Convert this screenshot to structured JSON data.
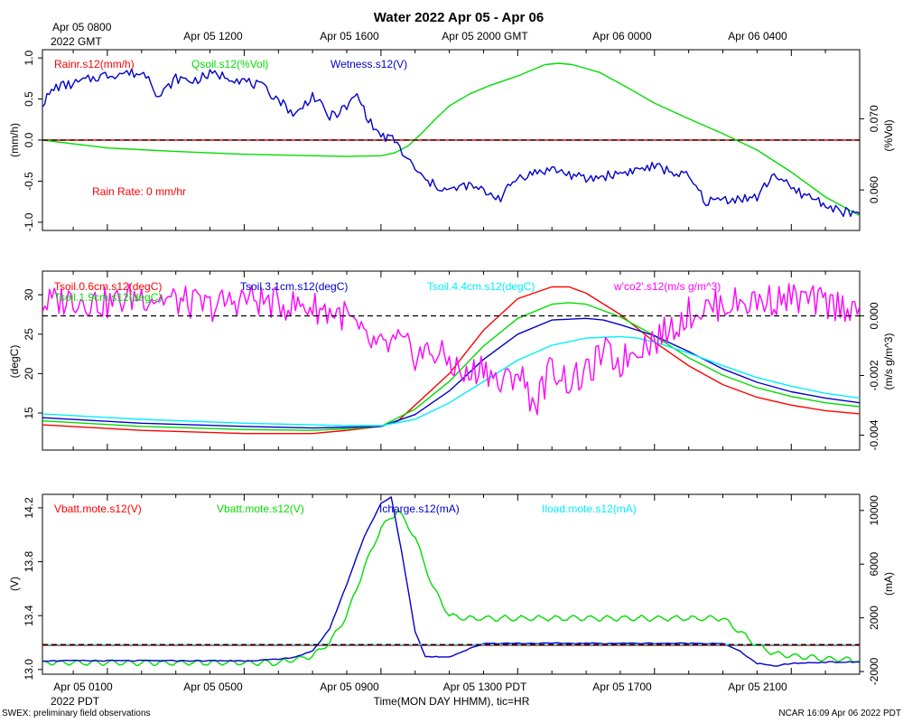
{
  "title": "Water 2022 Apr 05 - Apr 06",
  "top_axis": {
    "first_label_line1": "Apr 05 0800",
    "first_label_line2": "2022 GMT",
    "labels": [
      "Apr 05 1200",
      "Apr 05 1600",
      "Apr 05 2000 GMT",
      "Apr 06 0000",
      "Apr 06 0400"
    ]
  },
  "bottom_axis": {
    "labels": [
      "Apr 05 0100",
      "Apr 05 0500",
      "Apr 05 0900",
      "Apr 05 1300 PDT",
      "Apr 05 1700",
      "Apr 05 2100"
    ],
    "year_label": "2022 PDT",
    "xlabel": "Time(MON DAY HHMM), tic=HR"
  },
  "footer": {
    "left": "SWEX: preliminary field observations",
    "right": "NCAR 16:09 Apr 06 2022 PDT"
  },
  "colors": {
    "red": "#ff0000",
    "green": "#00dd00",
    "blue": "#0000cc",
    "cyan": "#00eeff",
    "magenta": "#ff00ff"
  },
  "chart_data": [
    {
      "type": "line",
      "panel": "water",
      "x_unit": "hours since Apr 05 0000 PDT",
      "xlim": [
        23.1,
        47.0
      ],
      "left_axis": {
        "label": "(mm/h)",
        "ylim": [
          -1.1,
          1.1
        ],
        "ticks": [
          "1.0",
          "0.5",
          "0.0",
          "-0.5",
          "-1.0"
        ],
        "tick_values": [
          1.0,
          0.5,
          0.0,
          -0.5,
          -1.0
        ]
      },
      "right_axis": {
        "label": "(%Vol)",
        "ylim": [
          0.0543,
          0.0797
        ],
        "ticks": [
          "0.070",
          "0.060"
        ],
        "tick_values": [
          0.07,
          0.06
        ]
      },
      "legend": [
        "Rainr.s12(mm/h)",
        "Qsoil.s12(%Vol)",
        "Wetness.s12(V)"
      ],
      "annotation": "Rain Rate: 0 mm/hr",
      "reference_line": 0.0,
      "series": [
        {
          "name": "Rainr.s12(mm/h)",
          "axis": "left",
          "color": "red",
          "x": [
            23.1,
            47.0
          ],
          "y": [
            0,
            0
          ]
        },
        {
          "name": "Qsoil.s12(%Vol)",
          "axis": "right",
          "color": "green",
          "x": [
            23.1,
            25,
            27,
            29,
            31,
            32,
            33,
            33.4,
            33.8,
            34.2,
            34.6,
            35.0,
            35.6,
            36.2,
            37.0,
            37.8,
            38.2,
            38.6,
            39.4,
            40.2,
            41.0,
            42.0,
            43.0,
            44.0,
            45.0,
            46.0,
            47.0
          ],
          "y": [
            0.067,
            0.0659,
            0.0654,
            0.065,
            0.0648,
            0.0647,
            0.0648,
            0.0652,
            0.0662,
            0.068,
            0.07,
            0.0718,
            0.0735,
            0.0747,
            0.076,
            0.0776,
            0.0778,
            0.0776,
            0.0765,
            0.0744,
            0.0722,
            0.07,
            0.0679,
            0.0656,
            0.0625,
            0.059,
            0.0564
          ]
        },
        {
          "name": "Wetness.s12(V)",
          "axis": "left",
          "color": "blue",
          "x": [
            23.1,
            23.5,
            24,
            24.8,
            25.5,
            26.2,
            26.5,
            27.0,
            27.5,
            28.0,
            28.5,
            29.0,
            29.5,
            30.0,
            30.5,
            31.0,
            31.5,
            32.0,
            32.3,
            32.7,
            33.0,
            33.4,
            33.7,
            34.0,
            34.3,
            35.0,
            35.5,
            36.0,
            36.5,
            37.0,
            38.0,
            39.0,
            40.0,
            41.0,
            42.0,
            42.5,
            43.0,
            44.0,
            44.5,
            45.0,
            45.3,
            45.6,
            46.0,
            46.3,
            46.6,
            47.0
          ],
          "y": [
            0.45,
            0.65,
            0.68,
            0.78,
            0.82,
            0.8,
            0.52,
            0.75,
            0.72,
            0.8,
            0.78,
            0.72,
            0.65,
            0.5,
            0.3,
            0.55,
            0.28,
            0.4,
            0.55,
            0.2,
            0.05,
            0.0,
            -0.2,
            -0.35,
            -0.5,
            -0.62,
            -0.55,
            -0.62,
            -0.7,
            -0.45,
            -0.35,
            -0.48,
            -0.4,
            -0.32,
            -0.45,
            -0.75,
            -0.72,
            -0.7,
            -0.4,
            -0.6,
            -0.65,
            -0.7,
            -0.78,
            -0.85,
            -0.88,
            -0.9
          ]
        }
      ]
    },
    {
      "type": "line",
      "panel": "soil_temperature",
      "x_unit": "hours since Apr 05 0000 PDT",
      "xlim": [
        23.1,
        47.0
      ],
      "left_axis": {
        "label": "(degC)",
        "ylim": [
          10.3,
          33.0
        ],
        "ticks": [
          "30",
          "25",
          "20",
          "15"
        ],
        "tick_values": [
          30,
          25,
          20,
          15
        ]
      },
      "right_axis": {
        "label": "(m/s g/m^3)",
        "ylim": [
          -0.0045,
          0.0015
        ],
        "ticks": [
          "0.000",
          "-0.002",
          "-0.004"
        ],
        "tick_values": [
          0.0,
          -0.002,
          -0.004
        ]
      },
      "legend": [
        "Tsoil.0.6cm.s12(degC)",
        "Tsoil.1.9cm.s12(degC)",
        "Tsoil.3.1cm.s12(degC)",
        "Tsoil.4.4cm.s12(degC)",
        "w'co2'.s12(m/s g/m^3)"
      ],
      "reference_line": 0.0,
      "series": [
        {
          "name": "Tsoil.0.6cm.s12(degC)",
          "axis": "left",
          "color": "red",
          "x": [
            23.1,
            26,
            29,
            31,
            32,
            33,
            33.5,
            34,
            35,
            36,
            37,
            38,
            38.5,
            39,
            40,
            41,
            42,
            43,
            44,
            45,
            46,
            47.0
          ],
          "y": [
            13.5,
            12.8,
            12.4,
            12.4,
            12.8,
            13.3,
            14.0,
            16.0,
            20.0,
            25.5,
            29.5,
            31.0,
            31.0,
            30.2,
            27.5,
            24.0,
            21.0,
            18.6,
            17.0,
            16.0,
            15.3,
            14.9
          ]
        },
        {
          "name": "Tsoil.1.9cm.s12(degC)",
          "axis": "left",
          "color": "green",
          "x": [
            23.1,
            26,
            29,
            31,
            32,
            33,
            34,
            35,
            36,
            37,
            38,
            38.5,
            39,
            40,
            41,
            42,
            43,
            44,
            45,
            46,
            47.0
          ],
          "y": [
            14.0,
            13.3,
            12.9,
            12.8,
            13.0,
            13.3,
            15.5,
            19.0,
            23.5,
            27.0,
            28.8,
            29.0,
            28.8,
            27.2,
            24.8,
            22.0,
            19.8,
            18.2,
            17.1,
            16.3,
            15.8
          ]
        },
        {
          "name": "Tsoil.3.1cm.s12(degC)",
          "axis": "left",
          "color": "blue",
          "x": [
            23.1,
            26,
            29,
            31,
            32,
            33,
            34,
            35,
            36,
            37,
            38,
            39,
            39.5,
            40,
            41,
            42,
            43,
            44,
            45,
            46,
            47.0
          ],
          "y": [
            14.4,
            13.7,
            13.3,
            13.1,
            13.2,
            13.3,
            14.8,
            17.8,
            21.8,
            25.0,
            26.8,
            27.0,
            26.8,
            26.2,
            24.8,
            22.8,
            20.6,
            18.9,
            17.7,
            16.9,
            16.3
          ]
        },
        {
          "name": "Tsoil.4.4cm.s12(degC)",
          "axis": "left",
          "color": "cyan",
          "x": [
            23.1,
            26,
            29,
            31,
            32,
            33,
            34,
            35,
            36,
            37,
            38,
            39,
            40,
            40.5,
            41,
            42,
            43,
            44,
            45,
            46,
            47.0
          ],
          "y": [
            14.9,
            14.2,
            13.7,
            13.5,
            13.4,
            13.4,
            14.2,
            16.3,
            19.0,
            21.7,
            23.6,
            24.5,
            24.7,
            24.5,
            24.0,
            22.6,
            21.0,
            19.5,
            18.4,
            17.5,
            16.9
          ]
        },
        {
          "name": "w'co2'.s12(m/s g/m^3)",
          "axis": "right",
          "color": "magenta",
          "x": [
            23.1,
            24,
            25,
            26,
            27,
            28,
            29,
            30,
            31,
            32,
            32.5,
            33,
            33.5,
            34,
            34.5,
            35,
            35.5,
            36,
            36.5,
            37,
            37.5,
            38,
            38.5,
            39,
            39.5,
            40,
            40.5,
            41,
            41.5,
            42,
            43,
            44,
            45,
            46,
            47.0
          ],
          "y": [
            0.0004,
            0.0006,
            0.0004,
            0.0007,
            0.0005,
            0.0003,
            0.0006,
            0.0004,
            0.0003,
            0.0,
            -0.0008,
            -0.0011,
            -0.0009,
            -0.0013,
            -0.0012,
            -0.0015,
            -0.0021,
            -0.0016,
            -0.0024,
            -0.0018,
            -0.003,
            -0.0017,
            -0.0022,
            -0.002,
            -0.0012,
            -0.0016,
            -0.001,
            -0.0008,
            -0.0004,
            0.0001,
            0.0004,
            0.0005,
            0.0006,
            0.0004,
            0.0003
          ]
        }
      ]
    },
    {
      "type": "line",
      "panel": "power",
      "x_unit": "hours since Apr 05 0000 PDT",
      "xlim": [
        23.1,
        47.0
      ],
      "left_axis": {
        "label": "(V)",
        "ylim": [
          12.965,
          14.3
        ],
        "ticks": [
          "14.2",
          "13.8",
          "13.4",
          "13.0"
        ],
        "tick_values": [
          14.2,
          13.8,
          13.4,
          13.0
        ]
      },
      "right_axis": {
        "label": "(mA)",
        "ylim": [
          -2200,
          11200
        ],
        "ticks": [
          "10000",
          "6000",
          "2000",
          "-2000"
        ],
        "tick_values": [
          10000,
          6000,
          2000,
          -2000
        ]
      },
      "legend": [
        "Vbatt.mote.s12(V)",
        "Vbatt.mote.s12(V)",
        "Icharge.s12(mA)",
        "Iload.mote.s12(mA)"
      ],
      "reference_line": 0,
      "series": [
        {
          "name": "Vbatt.mote.s12(V)",
          "axis": "left",
          "color": "red",
          "x": [
            23.1,
            47.0
          ],
          "y": [
            13.18,
            13.18
          ]
        },
        {
          "name": "Vbatt.mote.s12(V)",
          "axis": "left",
          "color": "green",
          "x": [
            23.1,
            30,
            31,
            31.5,
            32,
            32.5,
            33,
            33.5,
            34,
            34.5,
            35,
            35.5,
            36,
            36.5,
            43,
            43.5,
            44,
            44.5,
            45,
            46,
            47.0
          ],
          "y": [
            13.05,
            13.05,
            13.1,
            13.2,
            13.4,
            13.75,
            14.05,
            14.18,
            13.98,
            13.62,
            13.4,
            13.38,
            13.38,
            13.38,
            13.38,
            13.28,
            13.18,
            13.12,
            13.1,
            13.08,
            13.07
          ]
        },
        {
          "name": "Icharge.s12(mA)",
          "axis": "right",
          "color": "blue",
          "x": [
            23.1,
            29,
            30,
            30.5,
            31,
            31.5,
            32,
            32.5,
            33,
            33.3,
            33.6,
            34.0,
            34.3,
            35,
            36,
            42,
            43,
            43.5,
            44,
            44.5,
            45,
            46,
            47.0
          ],
          "y": [
            -1200,
            -1200,
            -1100,
            -900,
            -500,
            1200,
            4500,
            8000,
            10500,
            11000,
            7000,
            1000,
            -900,
            -900,
            100,
            100,
            100,
            -500,
            -1400,
            -1600,
            -1400,
            -1300,
            -1300
          ]
        },
        {
          "name": "Iload.mote.s12(mA)",
          "axis": "right",
          "color": "cyan",
          "x": [
            23.1,
            47.0
          ],
          "y": [
            0,
            0
          ]
        }
      ]
    }
  ]
}
